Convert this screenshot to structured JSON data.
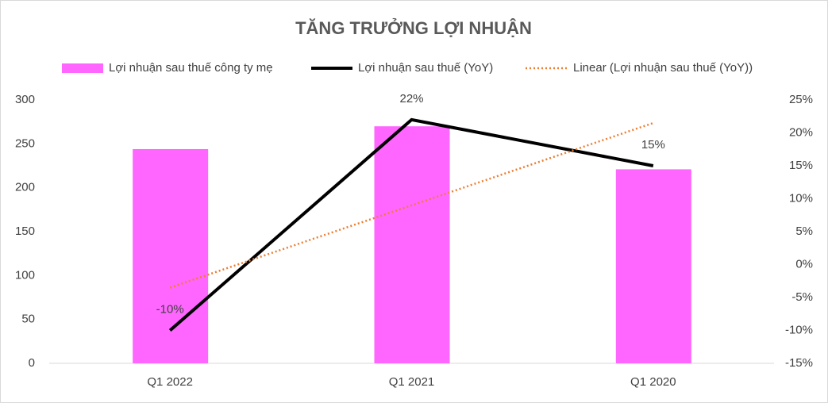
{
  "chart_data": {
    "type": "combo",
    "title": "TĂNG TRƯỞNG LỢI NHUẬN",
    "categories": [
      "Q1 2022",
      "Q1 2021",
      "Q1 2020"
    ],
    "series": [
      {
        "name": "Lợi nhuận sau thuế công ty mẹ",
        "type": "bar",
        "color": "#ff66ff",
        "values": [
          244,
          270,
          221
        ]
      },
      {
        "name": "Lợi nhuận sau thuế (YoY)",
        "type": "line",
        "axis": "y2",
        "color": "#000000",
        "values": [
          -10,
          22,
          15
        ],
        "value_labels": [
          "-10%",
          "22%",
          "15%"
        ]
      },
      {
        "name": "Linear (Lợi nhuận sau thuế (YoY))",
        "type": "line",
        "axis": "y2",
        "style": "dotted",
        "color": "#ed7d31",
        "values": [
          -3.5,
          9,
          21.5
        ]
      }
    ],
    "ylim": [
      0,
      300
    ],
    "yticks": [
      0,
      50,
      100,
      150,
      200,
      250,
      300
    ],
    "y2lim": [
      -15,
      25
    ],
    "y2ticks": [
      {
        "value": -15,
        "label": "-15%"
      },
      {
        "value": -10,
        "label": "-10%"
      },
      {
        "value": -5,
        "label": "-5%"
      },
      {
        "value": 0,
        "label": "0%"
      },
      {
        "value": 5,
        "label": "5%"
      },
      {
        "value": 10,
        "label": "10%"
      },
      {
        "value": 15,
        "label": "15%"
      },
      {
        "value": 20,
        "label": "20%"
      },
      {
        "value": 25,
        "label": "25%"
      }
    ],
    "grid": false,
    "legend": "top"
  }
}
